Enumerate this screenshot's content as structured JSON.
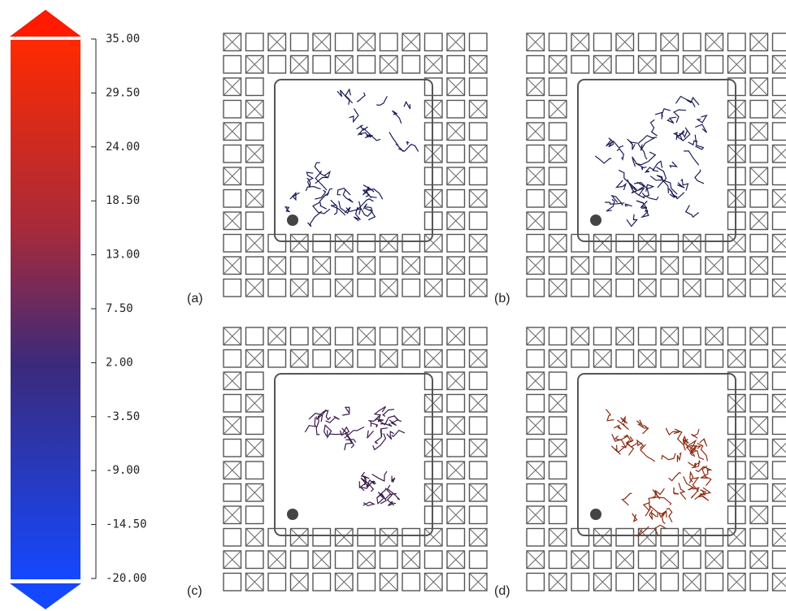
{
  "colorbar": {
    "range": [
      -20,
      35
    ],
    "ticks": [
      {
        "value": 35,
        "label": "35.00"
      },
      {
        "value": 29.5,
        "label": "29.50"
      },
      {
        "value": 24,
        "label": "24.00"
      },
      {
        "value": 18.5,
        "label": "18.50"
      },
      {
        "value": 13,
        "label": "13.00"
      },
      {
        "value": 7.5,
        "label": "7.50"
      },
      {
        "value": 2,
        "label": "2.00"
      },
      {
        "value": -3.5,
        "label": "-3.50"
      },
      {
        "value": -9,
        "label": "-9.00"
      },
      {
        "value": -14.5,
        "label": "-14.50"
      },
      {
        "value": -20,
        "label": "-20.00"
      }
    ]
  },
  "panels": [
    {
      "label": "(a)"
    },
    {
      "label": "(b)"
    },
    {
      "label": "(c)"
    },
    {
      "label": "(d)"
    }
  ]
}
